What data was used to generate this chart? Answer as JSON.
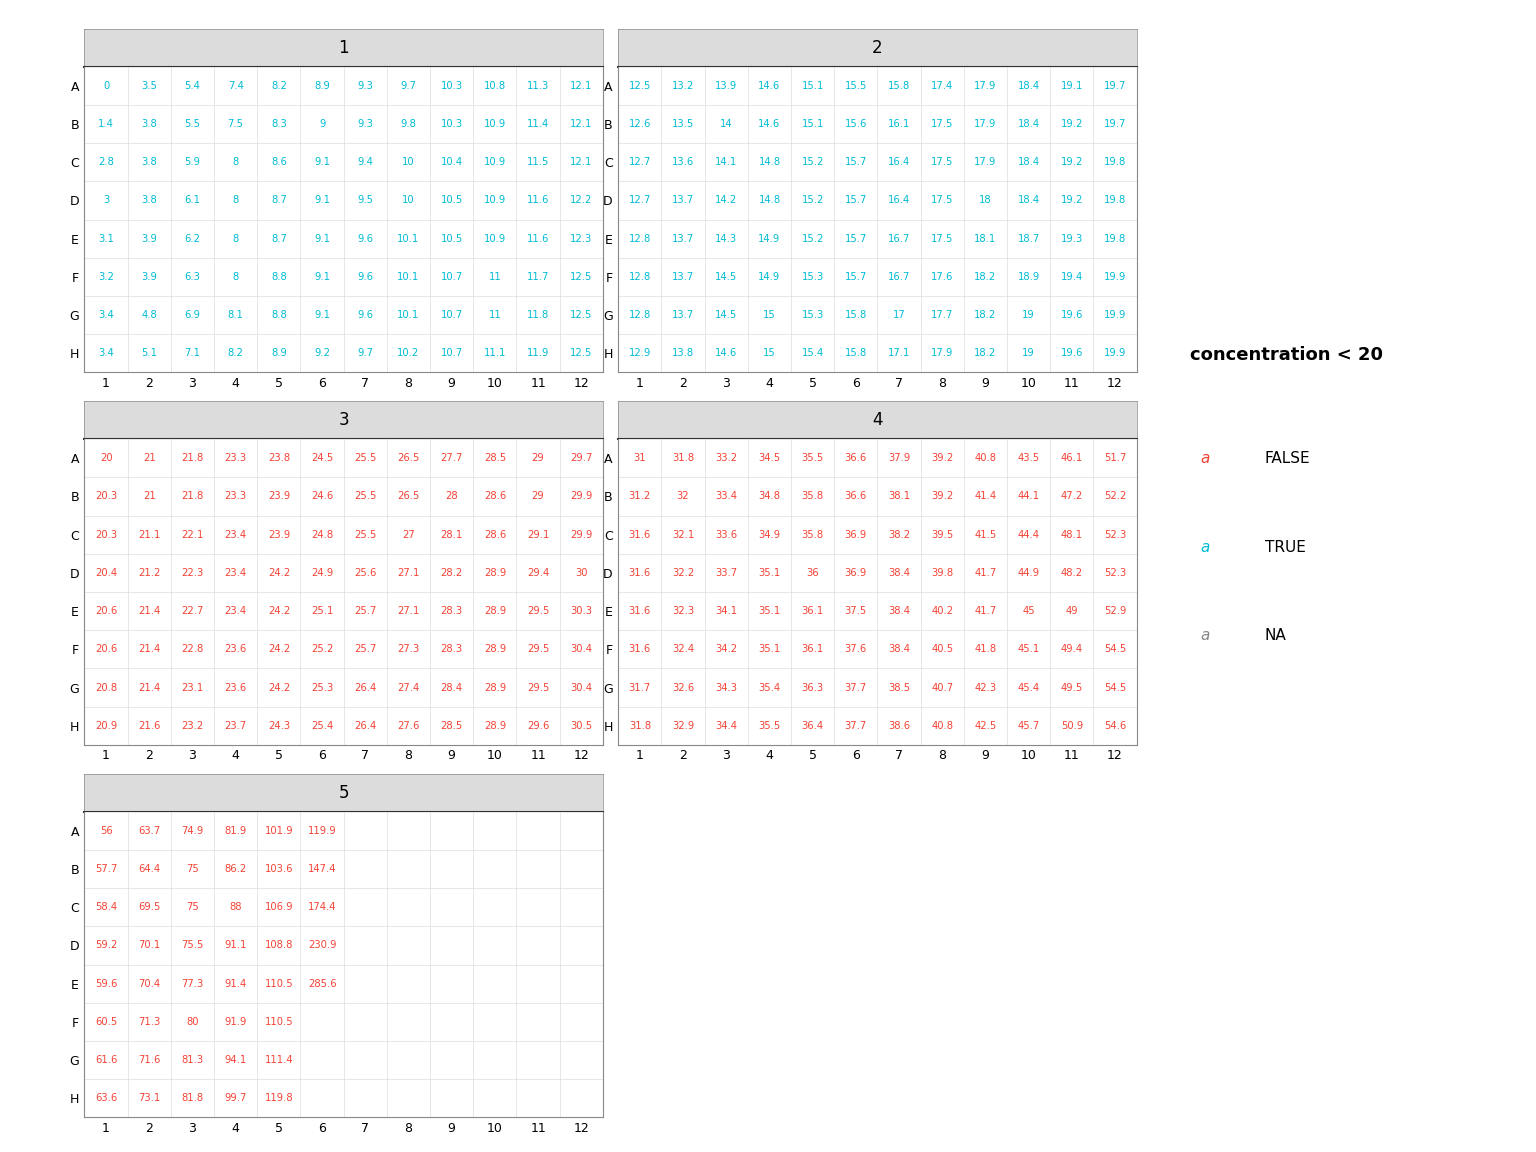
{
  "plates": [
    {
      "id": 1,
      "data": [
        [
          0,
          3.5,
          5.4,
          7.4,
          8.2,
          8.9,
          9.3,
          9.7,
          10.3,
          10.8,
          11.3,
          12.1
        ],
        [
          1.4,
          3.8,
          5.5,
          7.5,
          8.3,
          9,
          9.3,
          9.8,
          10.3,
          10.9,
          11.4,
          12.1
        ],
        [
          2.8,
          3.8,
          5.9,
          8,
          8.6,
          9.1,
          9.4,
          10,
          10.4,
          10.9,
          11.5,
          12.1
        ],
        [
          3,
          3.8,
          6.1,
          8,
          8.7,
          9.1,
          9.5,
          10,
          10.5,
          10.9,
          11.6,
          12.2
        ],
        [
          3.1,
          3.9,
          6.2,
          8,
          8.7,
          9.1,
          9.6,
          10.1,
          10.5,
          10.9,
          11.6,
          12.3
        ],
        [
          3.2,
          3.9,
          6.3,
          8,
          8.8,
          9.1,
          9.6,
          10.1,
          10.7,
          11,
          11.7,
          12.5
        ],
        [
          3.4,
          4.8,
          6.9,
          8.1,
          8.8,
          9.1,
          9.6,
          10.1,
          10.7,
          11,
          11.8,
          12.5
        ],
        [
          3.4,
          5.1,
          7.1,
          8.2,
          8.9,
          9.2,
          9.7,
          10.2,
          10.7,
          11.1,
          11.9,
          12.5
        ]
      ]
    },
    {
      "id": 2,
      "data": [
        [
          12.5,
          13.2,
          13.9,
          14.6,
          15.1,
          15.5,
          15.8,
          17.4,
          17.9,
          18.4,
          19.1,
          19.7
        ],
        [
          12.6,
          13.5,
          14,
          14.6,
          15.1,
          15.6,
          16.1,
          17.5,
          17.9,
          18.4,
          19.2,
          19.7
        ],
        [
          12.7,
          13.6,
          14.1,
          14.8,
          15.2,
          15.7,
          16.4,
          17.5,
          17.9,
          18.4,
          19.2,
          19.8
        ],
        [
          12.7,
          13.7,
          14.2,
          14.8,
          15.2,
          15.7,
          16.4,
          17.5,
          18,
          18.4,
          19.2,
          19.8
        ],
        [
          12.8,
          13.7,
          14.3,
          14.9,
          15.2,
          15.7,
          16.7,
          17.5,
          18.1,
          18.7,
          19.3,
          19.8
        ],
        [
          12.8,
          13.7,
          14.5,
          14.9,
          15.3,
          15.7,
          16.7,
          17.6,
          18.2,
          18.9,
          19.4,
          19.9
        ],
        [
          12.8,
          13.7,
          14.5,
          15,
          15.3,
          15.8,
          17,
          17.7,
          18.2,
          19,
          19.6,
          19.9
        ],
        [
          12.9,
          13.8,
          14.6,
          15,
          15.4,
          15.8,
          17.1,
          17.9,
          18.2,
          19,
          19.6,
          19.9
        ]
      ]
    },
    {
      "id": 3,
      "data": [
        [
          20,
          21,
          21.8,
          23.3,
          23.8,
          24.5,
          25.5,
          26.5,
          27.7,
          28.5,
          29,
          29.7
        ],
        [
          20.3,
          21,
          21.8,
          23.3,
          23.9,
          24.6,
          25.5,
          26.5,
          28,
          28.6,
          29,
          29.9
        ],
        [
          20.3,
          21.1,
          22.1,
          23.4,
          23.9,
          24.8,
          25.5,
          27,
          28.1,
          28.6,
          29.1,
          29.9
        ],
        [
          20.4,
          21.2,
          22.3,
          23.4,
          24.2,
          24.9,
          25.6,
          27.1,
          28.2,
          28.9,
          29.4,
          30
        ],
        [
          20.6,
          21.4,
          22.7,
          23.4,
          24.2,
          25.1,
          25.7,
          27.1,
          28.3,
          28.9,
          29.5,
          30.3
        ],
        [
          20.6,
          21.4,
          22.8,
          23.6,
          24.2,
          25.2,
          25.7,
          27.3,
          28.3,
          28.9,
          29.5,
          30.4
        ],
        [
          20.8,
          21.4,
          23.1,
          23.6,
          24.2,
          25.3,
          26.4,
          27.4,
          28.4,
          28.9,
          29.5,
          30.4
        ],
        [
          20.9,
          21.6,
          23.2,
          23.7,
          24.3,
          25.4,
          26.4,
          27.6,
          28.5,
          28.9,
          29.6,
          30.5
        ]
      ]
    },
    {
      "id": 4,
      "data": [
        [
          31,
          31.8,
          33.2,
          34.5,
          35.5,
          36.6,
          37.9,
          39.2,
          40.8,
          43.5,
          46.1,
          51.7
        ],
        [
          31.2,
          32,
          33.4,
          34.8,
          35.8,
          36.6,
          38.1,
          39.2,
          41.4,
          44.1,
          47.2,
          52.2
        ],
        [
          31.6,
          32.1,
          33.6,
          34.9,
          35.8,
          36.9,
          38.2,
          39.5,
          41.5,
          44.4,
          48.1,
          52.3
        ],
        [
          31.6,
          32.2,
          33.7,
          35.1,
          36,
          36.9,
          38.4,
          39.8,
          41.7,
          44.9,
          48.2,
          52.3
        ],
        [
          31.6,
          32.3,
          34.1,
          35.1,
          36.1,
          37.5,
          38.4,
          40.2,
          41.7,
          45,
          49,
          52.9
        ],
        [
          31.6,
          32.4,
          34.2,
          35.1,
          36.1,
          37.6,
          38.4,
          40.5,
          41.8,
          45.1,
          49.4,
          54.5
        ],
        [
          31.7,
          32.6,
          34.3,
          35.4,
          36.3,
          37.7,
          38.5,
          40.7,
          42.3,
          45.4,
          49.5,
          54.5
        ],
        [
          31.8,
          32.9,
          34.4,
          35.5,
          36.4,
          37.7,
          38.6,
          40.8,
          42.5,
          45.7,
          50.9,
          54.6
        ]
      ]
    },
    {
      "id": 5,
      "data": [
        [
          56,
          63.7,
          74.9,
          81.9,
          101.9,
          119.9,
          null,
          null,
          null,
          null,
          null,
          null
        ],
        [
          57.7,
          64.4,
          75,
          86.2,
          103.6,
          147.4,
          null,
          null,
          null,
          null,
          null,
          null
        ],
        [
          58.4,
          69.5,
          75,
          88,
          106.9,
          174.4,
          null,
          null,
          null,
          null,
          null,
          null
        ],
        [
          59.2,
          70.1,
          75.5,
          91.1,
          108.8,
          230.9,
          null,
          null,
          null,
          null,
          null,
          null
        ],
        [
          59.6,
          70.4,
          77.3,
          91.4,
          110.5,
          285.6,
          null,
          null,
          null,
          null,
          null,
          null
        ],
        [
          60.5,
          71.3,
          80,
          91.9,
          110.5,
          null,
          null,
          null,
          null,
          null,
          null,
          null
        ],
        [
          61.6,
          71.6,
          81.3,
          94.1,
          111.4,
          null,
          null,
          null,
          null,
          null,
          null,
          null
        ],
        [
          63.6,
          73.1,
          81.8,
          99.7,
          119.8,
          null,
          null,
          null,
          null,
          null,
          null,
          null
        ]
      ]
    }
  ],
  "rows": [
    "A",
    "B",
    "C",
    "D",
    "E",
    "F",
    "G",
    "H"
  ],
  "cols": [
    1,
    2,
    3,
    4,
    5,
    6,
    7,
    8,
    9,
    10,
    11,
    12
  ],
  "threshold": 20,
  "color_true": "#00BCD4",
  "color_false": "#F44336",
  "color_na": "#888888",
  "header_color": "#DCDCDC",
  "header_border": "#555555",
  "panel_border": "#888888",
  "grid_color": "#DDDDDD",
  "legend_title": "concentration < 20",
  "legend_entries": [
    {
      "label": "FALSE",
      "color": "#F44336"
    },
    {
      "label": "TRUE",
      "color": "#00BCD4"
    },
    {
      "label": "NA",
      "color": "#888888"
    }
  ]
}
